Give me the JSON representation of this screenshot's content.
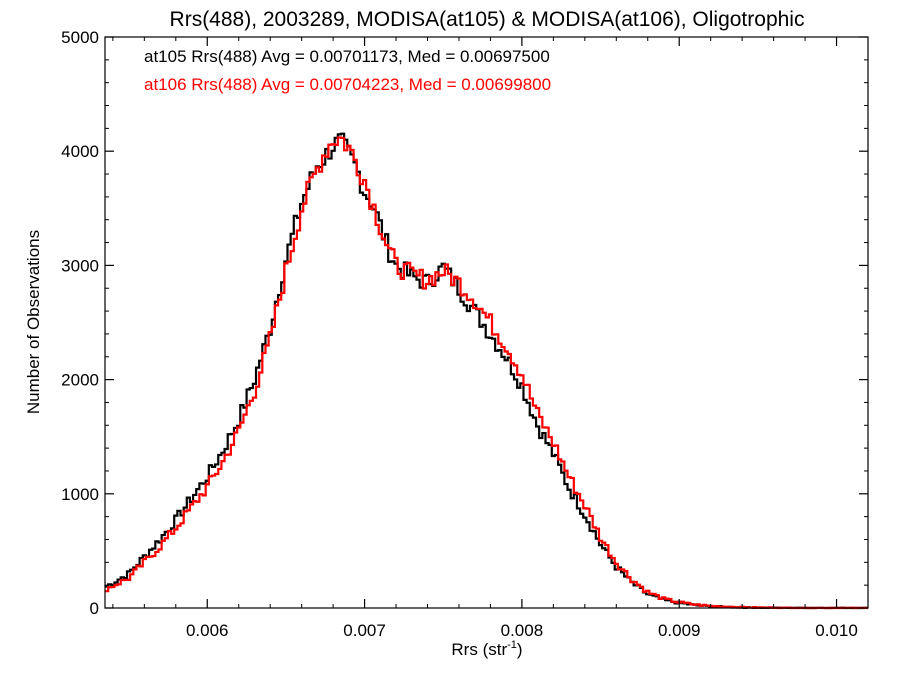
{
  "chart_data": {
    "type": "line",
    "step": true,
    "title": "Rrs(488), 2003289, MODISA(at105) & MODISA(at106), Oligotrophic",
    "xlabel_base": "Rrs (str",
    "xlabel_sup": "-1",
    "xlabel_close": ")",
    "ylabel": "Number of Observations",
    "xlim": [
      0.00535,
      0.0102
    ],
    "ylim": [
      0,
      5000
    ],
    "xticks": [
      0.006,
      0.007,
      0.008,
      0.009,
      0.01
    ],
    "xtick_labels": [
      "0.006",
      "0.007",
      "0.008",
      "0.009",
      "0.010"
    ],
    "yticks": [
      0,
      1000,
      2000,
      3000,
      4000,
      5000
    ],
    "ytick_labels": [
      "0",
      "1000",
      "2000",
      "3000",
      "4000",
      "5000"
    ],
    "grid": false,
    "annotations": [
      {
        "text": "at105 Rrs(488) Avg = 0.00701173, Med = 0.00697500",
        "color": "#000000"
      },
      {
        "text": "at106 Rrs(488) Avg = 0.00704223, Med = 0.00699800",
        "color": "#ff0000"
      }
    ],
    "series": [
      {
        "color": "#000000",
        "x": [
          0.00535,
          0.0055,
          0.0056,
          0.0057,
          0.0058,
          0.0059,
          0.006,
          0.0061,
          0.0062,
          0.0063,
          0.0064,
          0.0065,
          0.0066,
          0.0067,
          0.00675,
          0.0068,
          0.00685,
          0.0069,
          0.00695,
          0.007,
          0.00705,
          0.0071,
          0.00715,
          0.0072,
          0.0073,
          0.0074,
          0.0075,
          0.0076,
          0.0077,
          0.0078,
          0.0079,
          0.008,
          0.0081,
          0.0082,
          0.0083,
          0.0084,
          0.0085,
          0.0086,
          0.0087,
          0.0088,
          0.0089,
          0.009,
          0.0091,
          0.0092,
          0.0093,
          0.0094,
          0.0095,
          0.0096,
          0.0097,
          0.0098,
          0.0099,
          0.01,
          0.0101,
          0.0102
        ],
        "y": [
          180,
          300,
          450,
          600,
          770,
          960,
          1150,
          1380,
          1650,
          2000,
          2450,
          3050,
          3550,
          3880,
          3950,
          4050,
          4080,
          3970,
          3850,
          3650,
          3550,
          3350,
          3150,
          3000,
          2900,
          2850,
          2980,
          2800,
          2600,
          2400,
          2200,
          1950,
          1600,
          1350,
          1050,
          820,
          560,
          360,
          220,
          120,
          70,
          45,
          25,
          15,
          9,
          5,
          3,
          2,
          2,
          1,
          1,
          1,
          1,
          0
        ]
      },
      {
        "color": "#ff0000",
        "x": [
          0.00535,
          0.0055,
          0.0056,
          0.0057,
          0.0058,
          0.0059,
          0.006,
          0.0061,
          0.0062,
          0.0063,
          0.0064,
          0.0065,
          0.0066,
          0.0067,
          0.00675,
          0.0068,
          0.00685,
          0.0069,
          0.00695,
          0.007,
          0.00705,
          0.0071,
          0.00715,
          0.0072,
          0.0073,
          0.0074,
          0.0075,
          0.0076,
          0.0077,
          0.0078,
          0.0079,
          0.008,
          0.0081,
          0.0082,
          0.0083,
          0.0084,
          0.0085,
          0.0086,
          0.0087,
          0.0088,
          0.0089,
          0.009,
          0.0091,
          0.0092,
          0.0093,
          0.0094,
          0.0095,
          0.0096,
          0.0097,
          0.0098,
          0.0099,
          0.01,
          0.0101,
          0.0102
        ],
        "y": [
          160,
          260,
          400,
          540,
          700,
          880,
          1060,
          1280,
          1550,
          1900,
          2350,
          2950,
          3500,
          3850,
          4000,
          4100,
          4120,
          4030,
          3900,
          3750,
          3550,
          3350,
          3150,
          3000,
          2920,
          2870,
          2950,
          2850,
          2700,
          2500,
          2300,
          2050,
          1700,
          1450,
          1150,
          900,
          620,
          400,
          250,
          140,
          80,
          50,
          30,
          18,
          11,
          7,
          4,
          3,
          2,
          1,
          1,
          1,
          1,
          0
        ]
      }
    ]
  }
}
